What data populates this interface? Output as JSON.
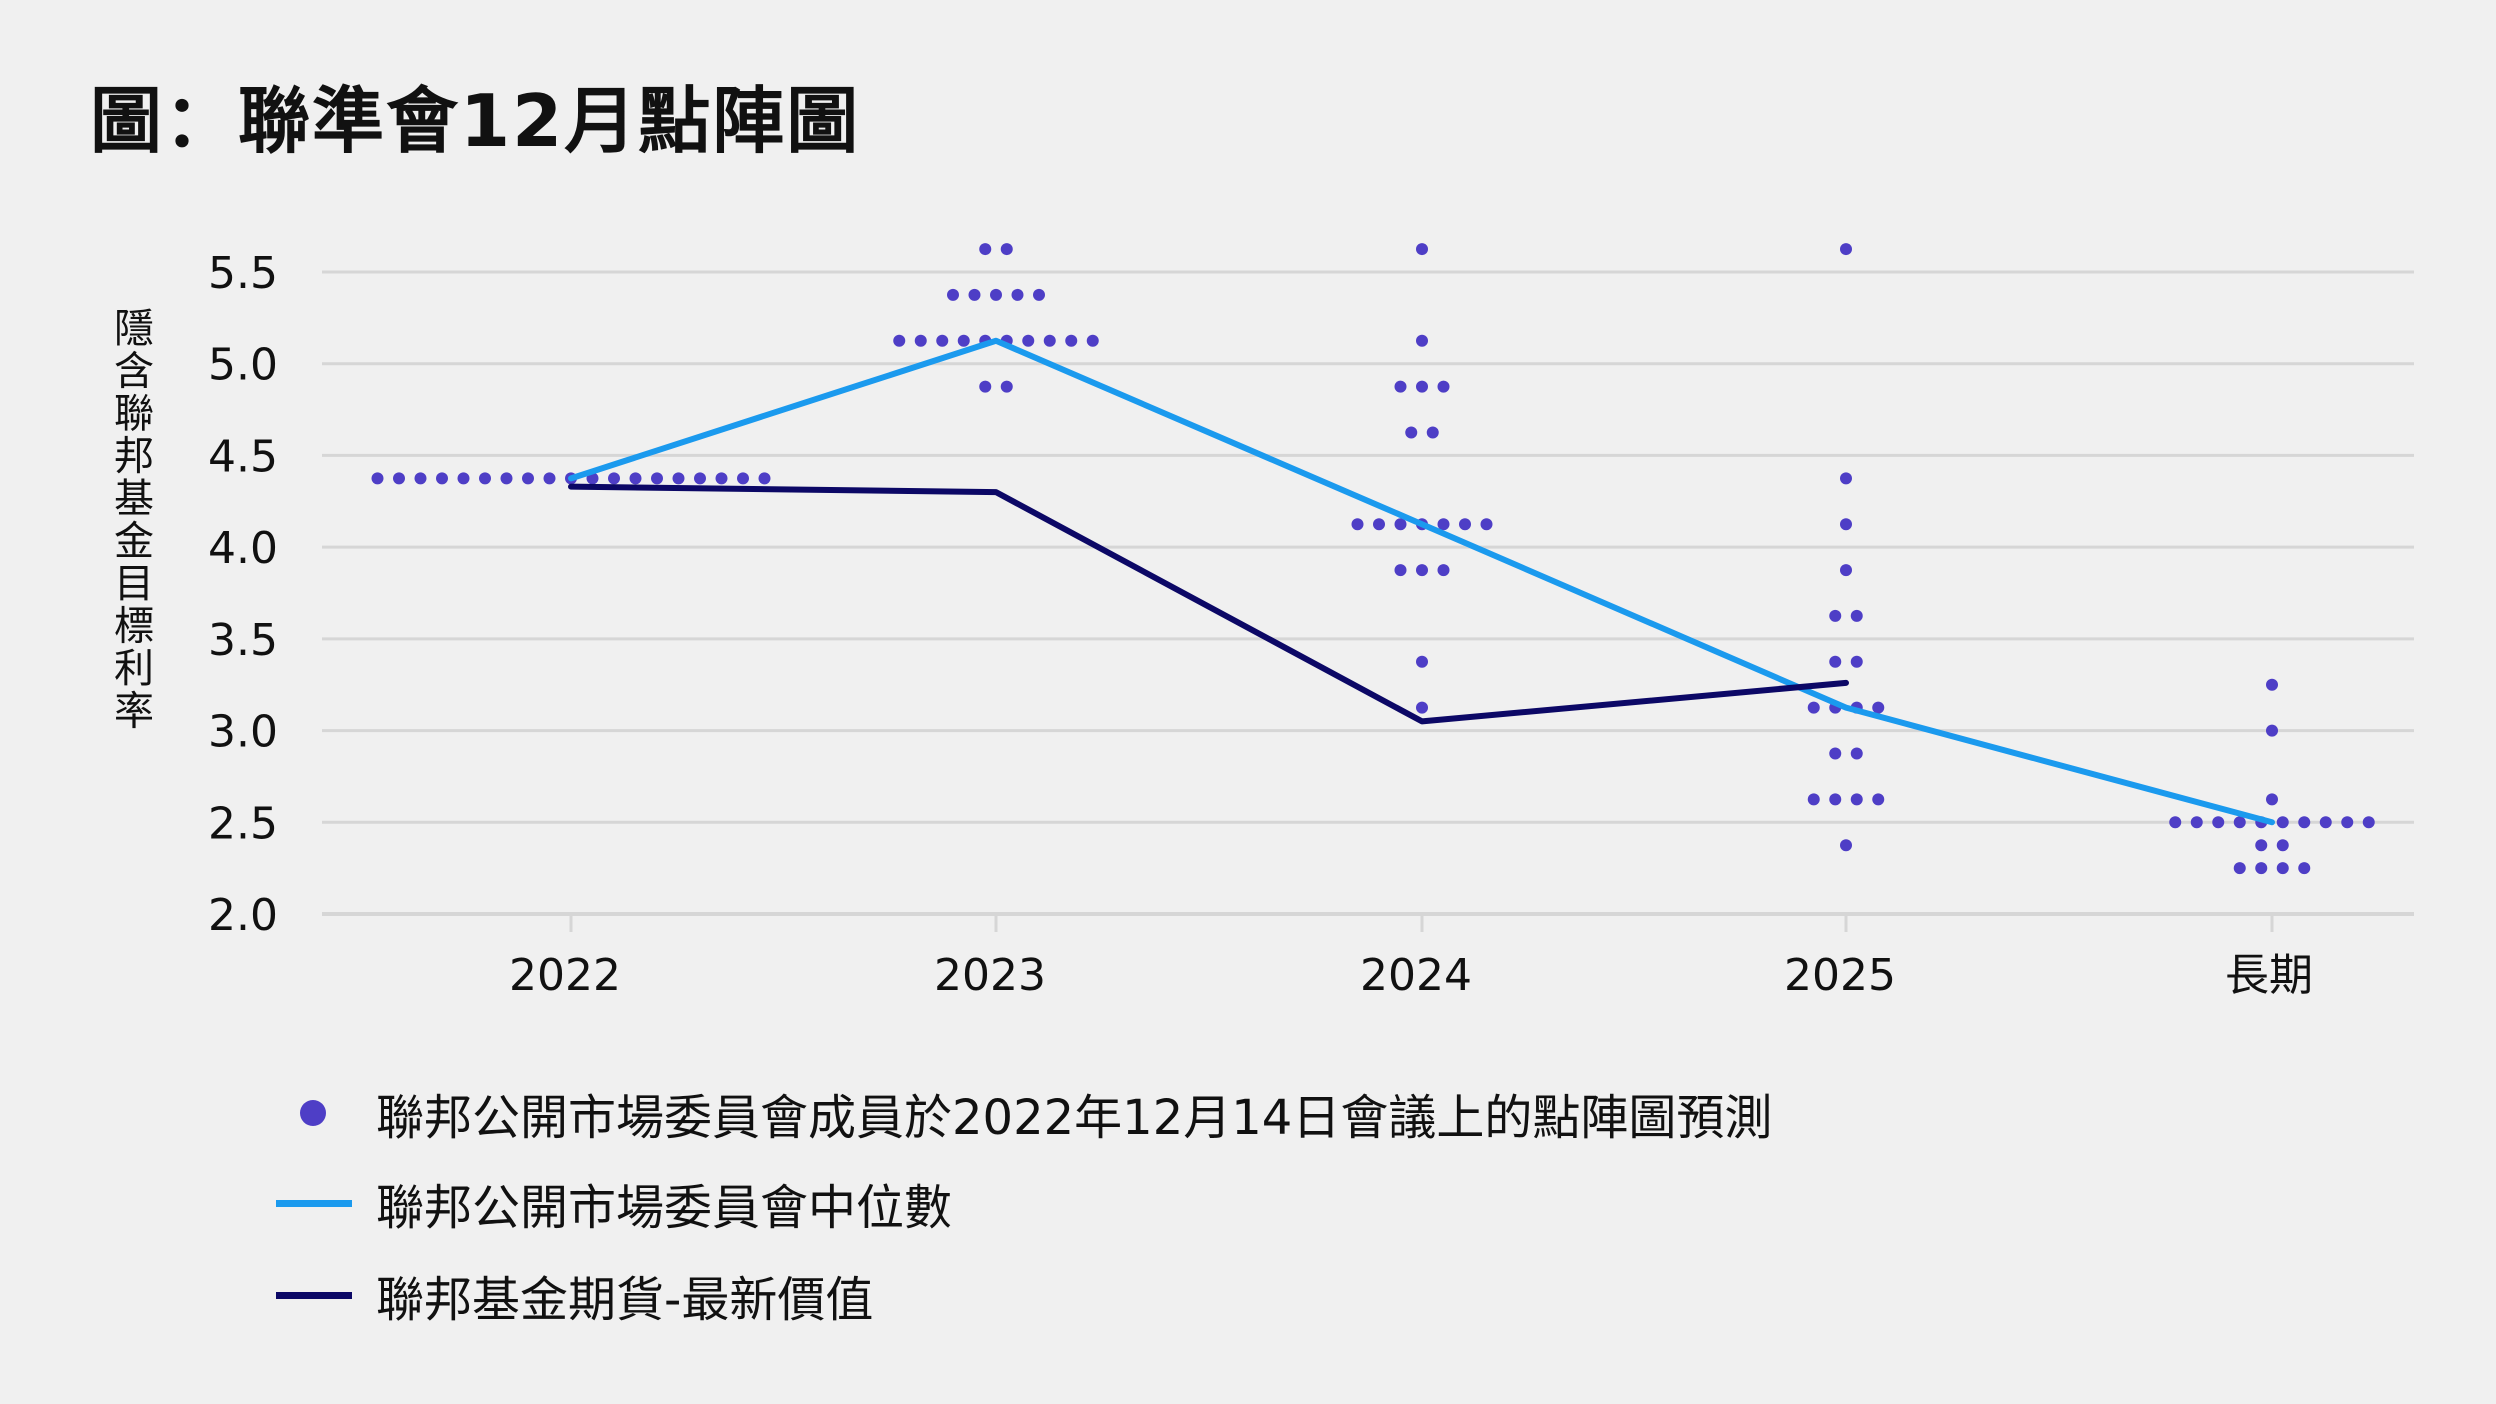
{
  "title": "圖：聯準會12月點陣圖",
  "colors": {
    "dots": "#4e3ec6",
    "median": "#1b9aee",
    "futures": "#0c0866",
    "grid": "#d6d6d6"
  },
  "chart_data": {
    "type": "scatter",
    "title": "圖：聯準會12月點陣圖",
    "ylabel": "隱含聯邦基金目標利率",
    "xlabel": "",
    "categories": [
      "2022",
      "2023",
      "2024",
      "2025",
      "長期"
    ],
    "ylim": [
      2.0,
      5.5
    ],
    "yticks": [
      "2.0",
      "2.5",
      "3.0",
      "3.5",
      "4.0",
      "4.5",
      "5.0",
      "5.5"
    ],
    "grid": true,
    "legend_position": "bottom-left",
    "dots": [
      {
        "category": "2022",
        "points": [
          [
            4.375,
            19
          ]
        ]
      },
      {
        "category": "2023",
        "points": [
          [
            5.625,
            2
          ],
          [
            5.375,
            5
          ],
          [
            5.125,
            10
          ],
          [
            4.875,
            2
          ]
        ]
      },
      {
        "category": "2024",
        "points": [
          [
            5.625,
            1
          ],
          [
            5.125,
            1
          ],
          [
            4.875,
            3
          ],
          [
            4.625,
            2
          ],
          [
            4.125,
            7
          ],
          [
            3.875,
            3
          ],
          [
            3.375,
            1
          ],
          [
            3.125,
            1
          ]
        ]
      },
      {
        "category": "2025",
        "points": [
          [
            5.625,
            1
          ],
          [
            4.375,
            1
          ],
          [
            4.125,
            1
          ],
          [
            3.875,
            1
          ],
          [
            3.625,
            2
          ],
          [
            3.375,
            2
          ],
          [
            3.125,
            4
          ],
          [
            2.875,
            2
          ],
          [
            2.625,
            4
          ],
          [
            2.375,
            1
          ]
        ]
      },
      {
        "category": "長期",
        "points": [
          [
            3.25,
            1
          ],
          [
            3.0,
            1
          ],
          [
            2.625,
            1
          ],
          [
            2.5,
            10
          ],
          [
            2.375,
            2
          ],
          [
            2.25,
            4
          ]
        ]
      }
    ],
    "series": [
      {
        "name": "聯邦公開市場委員會中位數",
        "values": [
          4.375,
          5.125,
          4.125,
          3.125,
          2.5
        ],
        "x_range": [
          "2022",
          "長期"
        ]
      },
      {
        "name": "聯邦基金期貨-最新價值",
        "values": [
          4.33,
          4.3,
          3.05,
          3.26
        ],
        "x_range": [
          "2022",
          "2025"
        ]
      }
    ]
  },
  "legend": [
    {
      "type": "dot",
      "label": "聯邦公開市場委員會成員於2022年12月14日會議上的點陣圖預測"
    },
    {
      "type": "line",
      "label": "聯邦公開市場委員會中位數"
    },
    {
      "type": "line",
      "label": "聯邦基金期貨-最新價值"
    }
  ]
}
